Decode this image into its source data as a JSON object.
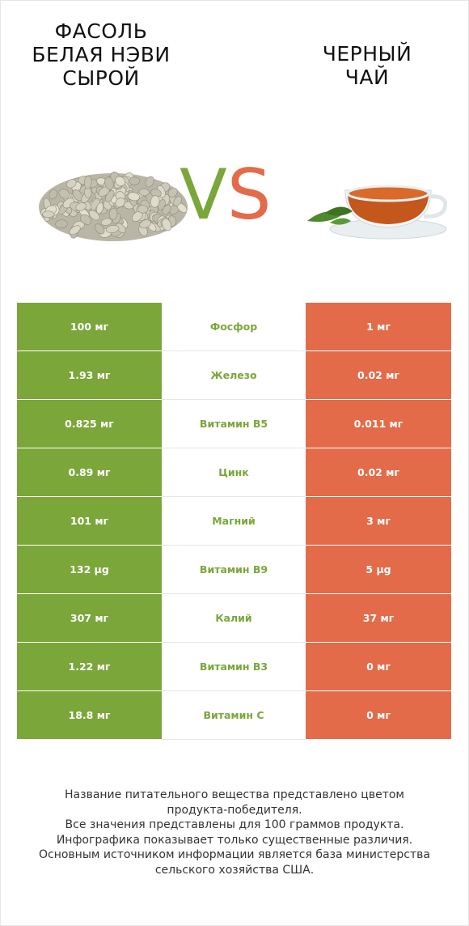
{
  "left_product": {
    "title_lines": [
      "ФАСОЛЬ",
      "БЕЛАЯ НЭВИ",
      "СЫРОЙ"
    ],
    "image": "white-navy-beans-photo"
  },
  "right_product": {
    "title_lines": [
      "ЧЕРНЫЙ",
      "ЧАЙ"
    ],
    "image": "black-tea-cup-photo"
  },
  "vs": {
    "v": "V",
    "s": "S"
  },
  "colors": {
    "green": "#7ba63a",
    "red": "#e36b4a"
  },
  "nutrients": [
    {
      "left": "100 мг",
      "name": "Фосфор",
      "right": "1 мг"
    },
    {
      "left": "1.93 мг",
      "name": "Железо",
      "right": "0.02 мг"
    },
    {
      "left": "0.825 мг",
      "name": "Витамин B5",
      "right": "0.011 мг"
    },
    {
      "left": "0.89 мг",
      "name": "Цинк",
      "right": "0.02 мг"
    },
    {
      "left": "101 мг",
      "name": "Магний",
      "right": "3 мг"
    },
    {
      "left": "132 µg",
      "name": "Витамин B9",
      "right": "5 µg"
    },
    {
      "left": "307 мг",
      "name": "Калий",
      "right": "37 мг"
    },
    {
      "left": "1.22 мг",
      "name": "Витамин B3",
      "right": "0 мг"
    },
    {
      "left": "18.8 мг",
      "name": "Витамин C",
      "right": "0 мг"
    }
  ],
  "footer_lines": [
    "Название питательного вещества представлено цветом",
    "продукта-победителя.",
    "Все значения представлены для 100 граммов продукта.",
    "Инфографика показывает только существенные различия.",
    "Основным источником информации является база министерства",
    "сельского хозяйства США."
  ]
}
